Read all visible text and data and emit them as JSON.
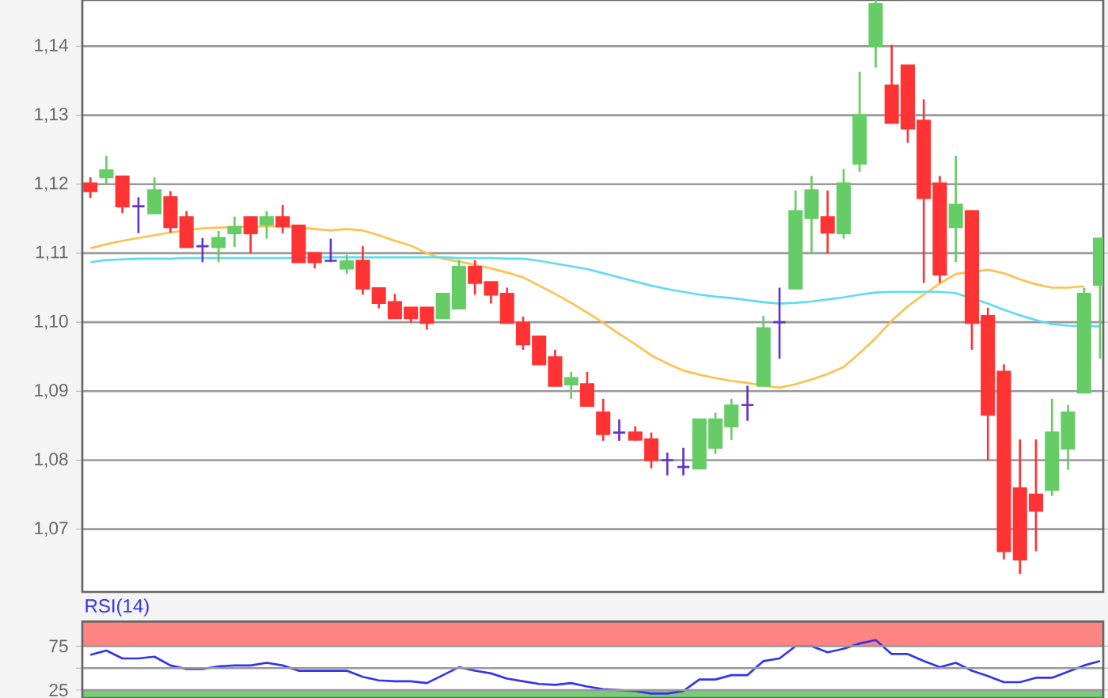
{
  "chart_data": [
    {
      "type": "candlestick",
      "categories": [
        null,
        null,
        null,
        null,
        null,
        null,
        null,
        null,
        null,
        null,
        null,
        null,
        null,
        null,
        null,
        null,
        null,
        null,
        null,
        null,
        null,
        null,
        null,
        null,
        null,
        null,
        null,
        null,
        null,
        null,
        null,
        null,
        null,
        null,
        null,
        null,
        null,
        null,
        null,
        null,
        null,
        null,
        null,
        null,
        null,
        null,
        null,
        null,
        null,
        null,
        null,
        null,
        null,
        null,
        null,
        null,
        null,
        null,
        null,
        null,
        null,
        null,
        null,
        null
      ],
      "ylim": [
        1.0609,
        1.1467
      ],
      "yticks": [
        {
          "value": 1.07,
          "label": "1,07"
        },
        {
          "value": 1.08,
          "label": "1,08"
        },
        {
          "value": 1.09,
          "label": "1,09"
        },
        {
          "value": 1.1,
          "label": "1,10"
        },
        {
          "value": 1.11,
          "label": "1,11"
        },
        {
          "value": 1.12,
          "label": "1,12"
        },
        {
          "value": 1.13,
          "label": "1,13"
        },
        {
          "value": 1.14,
          "label": "1,14"
        }
      ],
      "grid": "y",
      "series": [
        {
          "type": "line",
          "color": "#ffc04d",
          "values": [
            1.1107,
            1.1113,
            1.1118,
            1.1122,
            1.1126,
            1.113,
            null,
            1.1136,
            1.1137,
            1.1138,
            null,
            1.1139,
            1.1139,
            null,
            1.1135,
            1.1133,
            1.1135,
            1.1133,
            1.1126,
            1.1118,
            1.1111,
            1.11,
            1.1092,
            1.1088,
            1.1083,
            1.1078,
            1.1072,
            1.1065,
            1.1053,
            1.1041,
            1.1028,
            1.1014,
            1.0999,
            1.0983,
            1.0968,
            1.0952,
            1.094,
            1.093,
            1.0924,
            1.0919,
            1.0915,
            1.0912,
            1.0908,
            1.0905,
            1.091,
            1.0917,
            1.0925,
            1.0935,
            1.0955,
            1.0977,
            1.1002,
            1.1023,
            1.104,
            1.1056,
            1.107,
            null,
            1.1076,
            1.1071,
            1.1062,
            1.1055,
            1.105,
            1.105,
            1.1052,
            null
          ]
        },
        {
          "type": "line",
          "color": "#5ddcf0",
          "values": [
            1.1087,
            1.109,
            1.1091,
            1.1092,
            1.1092,
            1.1092,
            1.1093,
            1.1093,
            1.1093,
            1.1093,
            1.1093,
            1.1093,
            1.1093,
            null,
            null,
            1.1094,
            1.1094,
            1.1094,
            1.1094,
            1.1094,
            1.1094,
            1.1094,
            1.1094,
            1.1093,
            1.1093,
            1.1093,
            1.1092,
            1.1092,
            1.1089,
            1.1085,
            1.1081,
            1.1077,
            1.1071,
            1.1065,
            1.1059,
            1.1053,
            1.1048,
            1.1044,
            1.104,
            1.1037,
            1.1035,
            1.1032,
            1.1029,
            1.1027,
            1.1028,
            1.103,
            1.1033,
            1.1036,
            1.104,
            1.1043,
            1.1044,
            1.1044,
            1.1044,
            1.1044,
            1.1042,
            null,
            1.1027,
            1.1018,
            1.101,
            1.1003,
            1.0997,
            1.0995,
            null,
            1.0994
          ]
        },
        {
          "type": "candlestick",
          "ohlc": [
            [
              1.1201,
              1.121,
              1.118,
              1.119
            ],
            [
              1.121,
              1.1241,
              1.12,
              1.122
            ],
            [
              1.1211,
              1.1211,
              1.1158,
              1.1168
            ],
            [
              1.1168,
              1.1181,
              1.1129,
              1.1168
            ],
            [
              1.1158,
              1.121,
              1.1158,
              1.1191
            ],
            [
              1.1181,
              1.119,
              1.113,
              1.1138
            ],
            [
              1.1152,
              1.1161,
              1.1109,
              1.1109
            ],
            [
              1.111,
              1.1122,
              1.1087,
              1.111
            ],
            [
              1.1109,
              1.1132,
              1.1087,
              1.1122
            ],
            [
              1.1129,
              1.1153,
              1.1109,
              1.1138
            ],
            [
              1.1152,
              1.1152,
              1.11,
              1.1129
            ],
            [
              1.1142,
              1.1161,
              1.1121,
              1.1152
            ],
            [
              1.1152,
              1.117,
              1.1129,
              1.1139
            ],
            [
              1.114,
              1.114,
              1.1087,
              1.1087
            ],
            [
              1.11,
              1.11,
              1.1078,
              1.1087
            ],
            [
              1.1089,
              1.1121,
              1.1087,
              1.1089
            ],
            [
              1.1078,
              1.1098,
              1.107,
              1.1088
            ],
            [
              1.1089,
              1.111,
              1.104,
              1.1049
            ],
            [
              1.1049,
              1.1049,
              1.102,
              1.1028
            ],
            [
              1.1029,
              1.1041,
              1.1006,
              1.1006
            ],
            [
              1.1021,
              1.1021,
              1.0999,
              1.1006
            ],
            [
              1.1021,
              1.1021,
              1.0989,
              1.0999
            ],
            [
              1.1006,
              1.1041,
              1.1006,
              1.1041
            ],
            [
              1.102,
              1.109,
              1.102,
              1.108
            ],
            [
              1.108,
              1.109,
              1.104,
              1.1057
            ],
            [
              1.1058,
              1.1058,
              1.1027,
              1.104
            ],
            [
              1.1041,
              1.105,
              1.0999,
              1.0999
            ],
            [
              1.0999,
              1.1008,
              1.096,
              1.0968
            ],
            [
              1.0979,
              1.0979,
              1.0939,
              1.0939
            ],
            [
              1.0949,
              1.096,
              1.0908,
              1.0908
            ],
            [
              1.091,
              1.0928,
              1.0889,
              1.0919
            ],
            [
              1.091,
              1.0928,
              1.0879,
              1.0879
            ],
            [
              1.0869,
              1.0889,
              1.0828,
              1.0838
            ],
            [
              1.084,
              1.0859,
              1.0828,
              1.084
            ],
            [
              1.084,
              1.0849,
              1.0828,
              1.083
            ],
            [
              1.083,
              1.084,
              1.0788,
              1.08
            ],
            [
              1.08,
              1.0811,
              1.0778,
              1.08
            ],
            [
              1.079,
              1.0818,
              1.0778,
              1.079
            ],
            [
              1.0788,
              1.0859,
              1.0788,
              1.0859
            ],
            [
              1.0818,
              1.0869,
              1.0809,
              1.0859
            ],
            [
              1.0849,
              1.0889,
              1.0829,
              1.0879
            ],
            [
              1.088,
              1.0908,
              1.0857,
              1.088
            ],
            [
              1.0908,
              1.1009,
              1.0908,
              1.0991
            ],
            [
              1.1,
              1.105,
              1.0947,
              1.1
            ],
            [
              1.1049,
              1.1191,
              1.1049,
              1.1161
            ],
            [
              1.1151,
              1.1212,
              1.11,
              1.1191
            ],
            [
              1.1152,
              1.1191,
              1.11,
              1.113
            ],
            [
              1.1129,
              1.1222,
              1.1121,
              1.1201
            ],
            [
              1.123,
              1.1363,
              1.1218,
              1.13
            ],
            [
              1.14,
              1.1467,
              1.1369,
              1.1461
            ],
            [
              1.1343,
              1.1402,
              1.1289,
              1.1289
            ],
            [
              1.1372,
              1.1372,
              1.126,
              1.1281
            ],
            [
              1.1292,
              1.1323,
              1.1057,
              1.118
            ],
            [
              1.1201,
              1.1212,
              1.1057,
              1.1069
            ],
            [
              1.1138,
              1.1241,
              1.1087,
              1.117
            ],
            [
              1.1161,
              1.1161,
              1.096,
              1.0999
            ],
            [
              1.1009,
              1.1021,
              1.08,
              1.0866
            ],
            [
              1.0928,
              1.0939,
              1.0656,
              1.0668
            ],
            [
              1.0759,
              1.083,
              1.0635,
              1.0656
            ],
            [
              1.075,
              1.083,
              1.0668,
              1.0727
            ],
            [
              1.0757,
              1.0889,
              1.0748,
              1.084
            ],
            [
              1.0817,
              1.088,
              1.0786,
              1.0869
            ],
            [
              1.0898,
              1.105,
              1.0898,
              1.1041
            ],
            [
              1.1054,
              1.1121,
              1.0947,
              1.1121
            ]
          ],
          "colors": [
            "#ff3333",
            "#66cc66",
            "#ff3333",
            "#6633cc",
            "#66cc66",
            "#ff3333",
            "#ff3333",
            "#6633cc",
            "#66cc66",
            "#66cc66",
            "#ff3333",
            "#66cc66",
            "#ff3333",
            "#ff3333",
            "#ff3333",
            "#6633cc",
            "#66cc66",
            "#ff3333",
            "#ff3333",
            "#ff3333",
            "#ff3333",
            "#ff3333",
            "#66cc66",
            "#66cc66",
            "#ff3333",
            "#ff3333",
            "#ff3333",
            "#ff3333",
            "#ff3333",
            "#ff3333",
            "#66cc66",
            "#ff3333",
            "#ff3333",
            "#6633cc",
            "#ff3333",
            "#ff3333",
            "#6633cc",
            "#6633cc",
            "#66cc66",
            "#66cc66",
            "#66cc66",
            "#6633cc",
            "#66cc66",
            "#6633cc",
            "#66cc66",
            "#66cc66",
            "#ff3333",
            "#66cc66",
            "#66cc66",
            "#66cc66",
            "#ff3333",
            "#ff3333",
            "#ff3333",
            "#ff3333",
            "#66cc66",
            "#ff3333",
            "#ff3333",
            "#ff3333",
            "#ff3333",
            "#ff3333",
            "#66cc66",
            "#66cc66",
            "#66cc66",
            "#66cc66"
          ]
        }
      ]
    },
    {
      "type": "line",
      "title": "RSI(14)",
      "categories": [
        null,
        null,
        null,
        null,
        null,
        null,
        null,
        null,
        null,
        null,
        null,
        null,
        null,
        null,
        null,
        null,
        null,
        null,
        null,
        null,
        null,
        null,
        null,
        null,
        null,
        null,
        null,
        null,
        null,
        null,
        null,
        null,
        null,
        null,
        null,
        null,
        null,
        null,
        null,
        null,
        null,
        null,
        null,
        null,
        null,
        null,
        null,
        null,
        null,
        null,
        null,
        null,
        null,
        null,
        null,
        null,
        null,
        null,
        null,
        null,
        null,
        null,
        null,
        null
      ],
      "ylim": [
        16,
        103
      ],
      "yticks": [
        25,
        {
          "value": 50,
          "label": null
        },
        75
      ],
      "grid": "y",
      "bands": [
        {
          "axis": "y",
          "from": 75,
          "to": 103,
          "color": "#ff8585"
        },
        {
          "axis": "y",
          "from": 16,
          "to": 25,
          "color": "#77cc77"
        }
      ],
      "series": [
        {
          "color": "#3333ee",
          "values": [
            65,
            70,
            61,
            61,
            63,
            53,
            49,
            49,
            52,
            53,
            53,
            56,
            53,
            47,
            47,
            47,
            47,
            40,
            36,
            35,
            35,
            33,
            42,
            51,
            47,
            44,
            38,
            35,
            32,
            31,
            33,
            29,
            26,
            25,
            24,
            21,
            21,
            24,
            37,
            37,
            42,
            42,
            58,
            61,
            75,
            75,
            68,
            72,
            78,
            82,
            66,
            66,
            58,
            51,
            56,
            47,
            41,
            34,
            34,
            39,
            39,
            46,
            53,
            58
          ]
        }
      ]
    }
  ]
}
